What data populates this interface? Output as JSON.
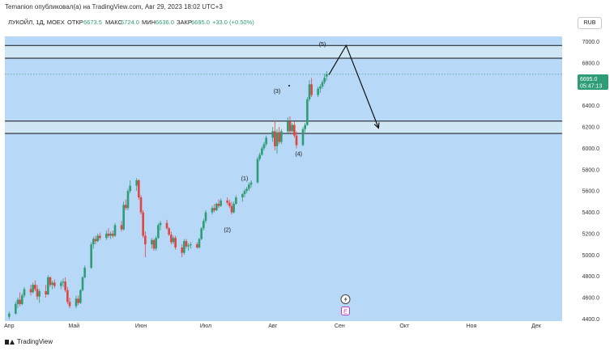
{
  "header": {
    "publisher_line": "Temanion опубликовал(а) на TradingView.com, Авг 29, 2023 18:02 UTC+3"
  },
  "legend": {
    "symbol": "ЛУКОЙЛ, 1Д, MOEX",
    "open_label": "ОТКР",
    "open": "6673.5",
    "high_label": "МАКС",
    "high": "6724.0",
    "low_label": "МИН",
    "low": "6636.0",
    "close_label": "ЗАКР",
    "close": "6695.0",
    "change": "+33.0 (+0.50%)"
  },
  "currency": "RUB",
  "price_badge": {
    "price": "6695.0",
    "countdown": "05:47:13"
  },
  "wave_labels": [
    "(1)",
    "(2)",
    "(3)",
    "(4)",
    "(5)"
  ],
  "chart_icons": [
    "lightning-icon",
    "earnings-icon"
  ],
  "earnings_label": "E",
  "footer": {
    "brand": "TradingView"
  },
  "colors": {
    "background": "#b8d8f8",
    "up": "#2e9d77",
    "down": "#e0453f",
    "price_line": "#2e9d77"
  },
  "chart_data": {
    "type": "candlestick",
    "y_ticks": [
      7000,
      6800,
      6600,
      6400,
      6200,
      6000,
      5800,
      5600,
      5400,
      5200,
      5000,
      4800,
      4600,
      4400
    ],
    "ylim": [
      4380,
      7050
    ],
    "x_ticks": [
      {
        "label": "Апр",
        "day": 0
      },
      {
        "label": "Май",
        "day": 30
      },
      {
        "label": "Июн",
        "day": 61
      },
      {
        "label": "Июл",
        "day": 91
      },
      {
        "label": "Авг",
        "day": 122
      },
      {
        "label": "Сен",
        "day": 153
      },
      {
        "label": "Окт",
        "day": 183
      },
      {
        "label": "Ноя",
        "day": 214
      },
      {
        "label": "Дек",
        "day": 244
      }
    ],
    "xlim": [
      -2,
      256
    ],
    "candles": [
      {
        "day": 0,
        "o": 4420,
        "h": 4470,
        "l": 4400,
        "c": 4450
      },
      {
        "day": 3,
        "o": 4450,
        "h": 4560,
        "l": 4440,
        "c": 4540
      },
      {
        "day": 4,
        "o": 4540,
        "h": 4600,
        "l": 4500,
        "c": 4580
      },
      {
        "day": 5,
        "o": 4580,
        "h": 4650,
        "l": 4520,
        "c": 4540
      },
      {
        "day": 6,
        "o": 4540,
        "h": 4640,
        "l": 4530,
        "c": 4620
      },
      {
        "day": 7,
        "o": 4620,
        "h": 4700,
        "l": 4600,
        "c": 4680
      },
      {
        "day": 10,
        "o": 4680,
        "h": 4720,
        "l": 4620,
        "c": 4650
      },
      {
        "day": 11,
        "o": 4650,
        "h": 4740,
        "l": 4640,
        "c": 4720
      },
      {
        "day": 12,
        "o": 4720,
        "h": 4760,
        "l": 4660,
        "c": 4680
      },
      {
        "day": 13,
        "o": 4680,
        "h": 4720,
        "l": 4580,
        "c": 4610
      },
      {
        "day": 14,
        "o": 4610,
        "h": 4680,
        "l": 4550,
        "c": 4660
      },
      {
        "day": 17,
        "o": 4660,
        "h": 4720,
        "l": 4600,
        "c": 4630
      },
      {
        "day": 18,
        "o": 4630,
        "h": 4810,
        "l": 4620,
        "c": 4790
      },
      {
        "day": 19,
        "o": 4790,
        "h": 4800,
        "l": 4700,
        "c": 4720
      },
      {
        "day": 20,
        "o": 4720,
        "h": 4760,
        "l": 4680,
        "c": 4740
      },
      {
        "day": 21,
        "o": 4740,
        "h": 4770,
        "l": 4690,
        "c": 4710
      },
      {
        "day": 24,
        "o": 4710,
        "h": 4760,
        "l": 4680,
        "c": 4740
      },
      {
        "day": 25,
        "o": 4740,
        "h": 4780,
        "l": 4700,
        "c": 4750
      },
      {
        "day": 26,
        "o": 4750,
        "h": 4790,
        "l": 4650,
        "c": 4670
      },
      {
        "day": 27,
        "o": 4670,
        "h": 4700,
        "l": 4540,
        "c": 4560
      },
      {
        "day": 28,
        "o": 4560,
        "h": 4600,
        "l": 4500,
        "c": 4520
      },
      {
        "day": 31,
        "o": 4520,
        "h": 4620,
        "l": 4500,
        "c": 4590
      },
      {
        "day": 32,
        "o": 4590,
        "h": 4620,
        "l": 4530,
        "c": 4550
      },
      {
        "day": 33,
        "o": 4550,
        "h": 4680,
        "l": 4540,
        "c": 4670
      },
      {
        "day": 34,
        "o": 4670,
        "h": 4800,
        "l": 4660,
        "c": 4790
      },
      {
        "day": 35,
        "o": 4790,
        "h": 4900,
        "l": 4780,
        "c": 4880
      },
      {
        "day": 38,
        "o": 4880,
        "h": 5120,
        "l": 4870,
        "c": 5100
      },
      {
        "day": 39,
        "o": 5100,
        "h": 5170,
        "l": 5060,
        "c": 5150
      },
      {
        "day": 40,
        "o": 5150,
        "h": 5180,
        "l": 5100,
        "c": 5130
      },
      {
        "day": 41,
        "o": 5130,
        "h": 5200,
        "l": 5120,
        "c": 5180
      },
      {
        "day": 42,
        "o": 5180,
        "h": 5210,
        "l": 5140,
        "c": 5160
      },
      {
        "day": 45,
        "o": 5160,
        "h": 5230,
        "l": 5140,
        "c": 5200
      },
      {
        "day": 46,
        "o": 5200,
        "h": 5250,
        "l": 5160,
        "c": 5180
      },
      {
        "day": 47,
        "o": 5180,
        "h": 5220,
        "l": 5150,
        "c": 5200
      },
      {
        "day": 48,
        "o": 5200,
        "h": 5230,
        "l": 5160,
        "c": 5180
      },
      {
        "day": 49,
        "o": 5180,
        "h": 5300,
        "l": 5170,
        "c": 5280
      },
      {
        "day": 52,
        "o": 5280,
        "h": 5320,
        "l": 5220,
        "c": 5240
      },
      {
        "day": 53,
        "o": 5240,
        "h": 5500,
        "l": 5230,
        "c": 5470
      },
      {
        "day": 54,
        "o": 5470,
        "h": 5520,
        "l": 5420,
        "c": 5440
      },
      {
        "day": 55,
        "o": 5440,
        "h": 5620,
        "l": 5420,
        "c": 5600
      },
      {
        "day": 56,
        "o": 5600,
        "h": 5700,
        "l": 5580,
        "c": 5650
      },
      {
        "day": 59,
        "o": 5650,
        "h": 5720,
        "l": 5600,
        "c": 5700
      },
      {
        "day": 60,
        "o": 5700,
        "h": 5710,
        "l": 5520,
        "c": 5540
      },
      {
        "day": 61,
        "o": 5540,
        "h": 5560,
        "l": 5380,
        "c": 5400
      },
      {
        "day": 62,
        "o": 5400,
        "h": 5420,
        "l": 5160,
        "c": 5180
      },
      {
        "day": 63,
        "o": 5180,
        "h": 5220,
        "l": 4980,
        "c": 5100
      },
      {
        "day": 66,
        "o": 5100,
        "h": 5160,
        "l": 5060,
        "c": 5140
      },
      {
        "day": 67,
        "o": 5140,
        "h": 5150,
        "l": 5040,
        "c": 5060
      },
      {
        "day": 68,
        "o": 5060,
        "h": 5180,
        "l": 5040,
        "c": 5160
      },
      {
        "day": 69,
        "o": 5160,
        "h": 5300,
        "l": 5150,
        "c": 5280
      },
      {
        "day": 70,
        "o": 5280,
        "h": 5320,
        "l": 5230,
        "c": 5300
      },
      {
        "day": 73,
        "o": 5300,
        "h": 5330,
        "l": 5240,
        "c": 5250
      },
      {
        "day": 74,
        "o": 5250,
        "h": 5260,
        "l": 5180,
        "c": 5190
      },
      {
        "day": 75,
        "o": 5190,
        "h": 5220,
        "l": 5100,
        "c": 5120
      },
      {
        "day": 76,
        "o": 5120,
        "h": 5180,
        "l": 5100,
        "c": 5160
      },
      {
        "day": 77,
        "o": 5160,
        "h": 5180,
        "l": 5050,
        "c": 5070
      },
      {
        "day": 80,
        "o": 5070,
        "h": 5100,
        "l": 4980,
        "c": 5020
      },
      {
        "day": 81,
        "o": 5020,
        "h": 5150,
        "l": 5000,
        "c": 5130
      },
      {
        "day": 82,
        "o": 5130,
        "h": 5150,
        "l": 5060,
        "c": 5080
      },
      {
        "day": 83,
        "o": 5080,
        "h": 5110,
        "l": 5040,
        "c": 5090
      },
      {
        "day": 84,
        "o": 5090,
        "h": 5120,
        "l": 5060,
        "c": 5100
      },
      {
        "day": 87,
        "o": 5100,
        "h": 5120,
        "l": 5060,
        "c": 5070
      },
      {
        "day": 88,
        "o": 5070,
        "h": 5160,
        "l": 5060,
        "c": 5150
      },
      {
        "day": 89,
        "o": 5150,
        "h": 5260,
        "l": 5140,
        "c": 5250
      },
      {
        "day": 90,
        "o": 5250,
        "h": 5340,
        "l": 5230,
        "c": 5320
      },
      {
        "day": 91,
        "o": 5320,
        "h": 5420,
        "l": 5300,
        "c": 5400
      },
      {
        "day": 94,
        "o": 5400,
        "h": 5460,
        "l": 5380,
        "c": 5440
      },
      {
        "day": 95,
        "o": 5440,
        "h": 5480,
        "l": 5400,
        "c": 5420
      },
      {
        "day": 96,
        "o": 5420,
        "h": 5490,
        "l": 5410,
        "c": 5480
      },
      {
        "day": 97,
        "o": 5480,
        "h": 5520,
        "l": 5440,
        "c": 5460
      },
      {
        "day": 98,
        "o": 5460,
        "h": 5530,
        "l": 5450,
        "c": 5510
      },
      {
        "day": 101,
        "o": 5510,
        "h": 5540,
        "l": 5470,
        "c": 5490
      },
      {
        "day": 102,
        "o": 5490,
        "h": 5520,
        "l": 5440,
        "c": 5460
      },
      {
        "day": 103,
        "o": 5460,
        "h": 5500,
        "l": 5380,
        "c": 5400
      },
      {
        "day": 104,
        "o": 5400,
        "h": 5500,
        "l": 5390,
        "c": 5480
      },
      {
        "day": 105,
        "o": 5480,
        "h": 5560,
        "l": 5470,
        "c": 5540
      },
      {
        "day": 108,
        "o": 5540,
        "h": 5580,
        "l": 5500,
        "c": 5570
      },
      {
        "day": 109,
        "o": 5570,
        "h": 5620,
        "l": 5540,
        "c": 5600
      },
      {
        "day": 110,
        "o": 5600,
        "h": 5640,
        "l": 5580,
        "c": 5620
      },
      {
        "day": 111,
        "o": 5620,
        "h": 5680,
        "l": 5600,
        "c": 5660
      },
      {
        "day": 112,
        "o": 5660,
        "h": 5700,
        "l": 5630,
        "c": 5680
      },
      {
        "day": 115,
        "o": 5680,
        "h": 5920,
        "l": 5670,
        "c": 5900
      },
      {
        "day": 116,
        "o": 5900,
        "h": 5960,
        "l": 5880,
        "c": 5940
      },
      {
        "day": 117,
        "o": 5940,
        "h": 6020,
        "l": 5930,
        "c": 6000
      },
      {
        "day": 118,
        "o": 6000,
        "h": 6060,
        "l": 5980,
        "c": 6040
      },
      {
        "day": 119,
        "o": 6040,
        "h": 6120,
        "l": 6020,
        "c": 6100
      },
      {
        "day": 122,
        "o": 6100,
        "h": 6200,
        "l": 6060,
        "c": 6160
      },
      {
        "day": 123,
        "o": 6160,
        "h": 6260,
        "l": 5980,
        "c": 6020
      },
      {
        "day": 124,
        "o": 6020,
        "h": 6180,
        "l": 5950,
        "c": 6150
      },
      {
        "day": 125,
        "o": 6150,
        "h": 6200,
        "l": 6040,
        "c": 6060
      },
      {
        "day": 126,
        "o": 6060,
        "h": 6180,
        "l": 6040,
        "c": 6160
      },
      {
        "day": 129,
        "o": 6160,
        "h": 6290,
        "l": 6140,
        "c": 6250
      },
      {
        "day": 130,
        "o": 6250,
        "h": 6300,
        "l": 6130,
        "c": 6160
      },
      {
        "day": 131,
        "o": 6160,
        "h": 6240,
        "l": 6150,
        "c": 6220
      },
      {
        "day": 132,
        "o": 6220,
        "h": 6250,
        "l": 6100,
        "c": 6120
      },
      {
        "day": 133,
        "o": 6120,
        "h": 6160,
        "l": 6000,
        "c": 6030
      },
      {
        "day": 136,
        "o": 6030,
        "h": 6200,
        "l": 6020,
        "c": 6180
      },
      {
        "day": 137,
        "o": 6180,
        "h": 6240,
        "l": 6150,
        "c": 6220
      },
      {
        "day": 138,
        "o": 6220,
        "h": 6480,
        "l": 6210,
        "c": 6460
      },
      {
        "day": 139,
        "o": 6460,
        "h": 6640,
        "l": 6440,
        "c": 6600
      },
      {
        "day": 140,
        "o": 6600,
        "h": 6660,
        "l": 6480,
        "c": 6500
      },
      {
        "day": 143,
        "o": 6500,
        "h": 6580,
        "l": 6480,
        "c": 6560
      },
      {
        "day": 144,
        "o": 6560,
        "h": 6600,
        "l": 6520,
        "c": 6580
      },
      {
        "day": 145,
        "o": 6580,
        "h": 6640,
        "l": 6560,
        "c": 6620
      },
      {
        "day": 146,
        "o": 6620,
        "h": 6700,
        "l": 6600,
        "c": 6662
      },
      {
        "day": 147,
        "o": 6673.5,
        "h": 6724,
        "l": 6636,
        "c": 6695
      }
    ],
    "zones": [
      {
        "from": 6845,
        "to": 6965
      },
      {
        "from": 6140,
        "to": 6255
      }
    ],
    "projection": [
      {
        "day": 148,
        "price": 6690
      },
      {
        "day": 156,
        "price": 6965
      },
      {
        "day": 171,
        "price": 6190
      }
    ],
    "waves": [
      {
        "label": "(1)",
        "day": 109,
        "price": 5700
      },
      {
        "label": "(2)",
        "day": 101,
        "price": 5220
      },
      {
        "label": "(3)",
        "day": 124,
        "price": 6520
      },
      {
        "label": "(4)",
        "day": 134,
        "price": 5930
      },
      {
        "label": "(5)",
        "day": 145,
        "price": 6960
      }
    ],
    "current_price": 6695,
    "marker_day": 146
  }
}
